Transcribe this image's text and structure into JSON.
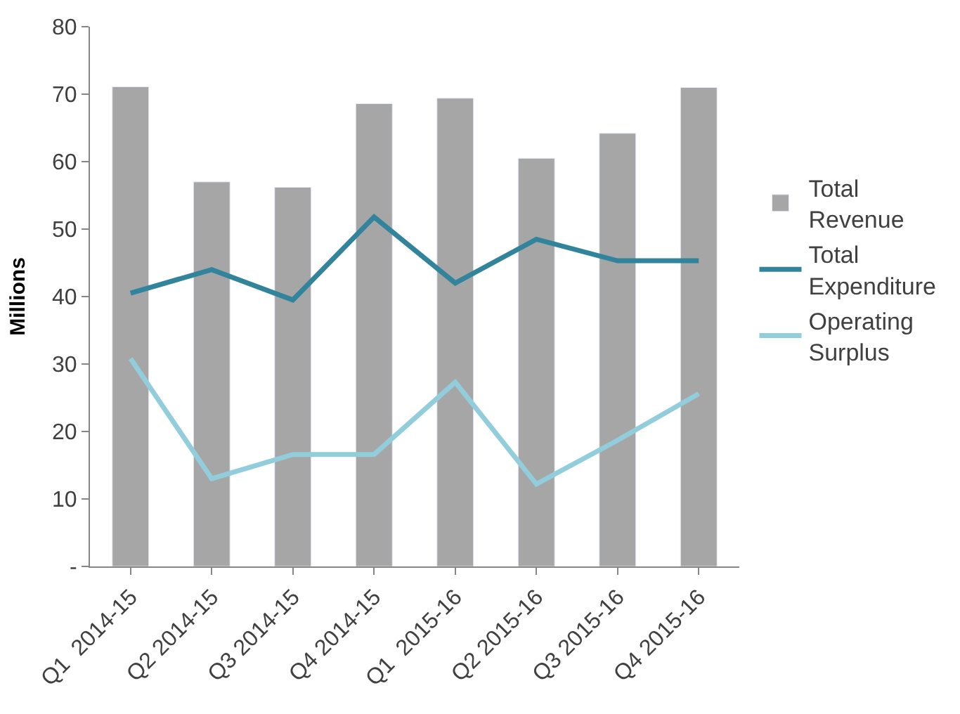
{
  "chart_data": {
    "type": "bar",
    "ylabel": "Millions",
    "categories": [
      "Q1  2014-15",
      "Q2 2014-15",
      "Q3 2014-15",
      "Q4 2014-15",
      "Q1  2015-16",
      "Q2 2015-16",
      "Q3 2015-16",
      "Q4 2015-16"
    ],
    "series": [
      {
        "name": "Total Revenue",
        "color": "#a6a6a6",
        "values": [
          71.1,
          57,
          56.2,
          68.6,
          69.4,
          60.5,
          64.2,
          71
        ]
      },
      {
        "name": "Total Expenditure",
        "type": "line",
        "color": "#31849b",
        "values": [
          40.5,
          44,
          39.5,
          51.8,
          42,
          48.5,
          45.3,
          45.3
        ]
      },
      {
        "name": "Operating Surplus",
        "type": "line",
        "color": "#92cddc",
        "values": [
          30.8,
          13,
          16.6,
          16.6,
          27.3,
          12.2,
          18.7,
          25.6
        ]
      }
    ],
    "ylim": [
      0,
      80
    ],
    "yticks": [
      {
        "value": 0,
        "label": "-"
      },
      10,
      20,
      30,
      40,
      50,
      60,
      70,
      80
    ],
    "legend": "right",
    "marker": "none",
    "line_style": "solid"
  }
}
